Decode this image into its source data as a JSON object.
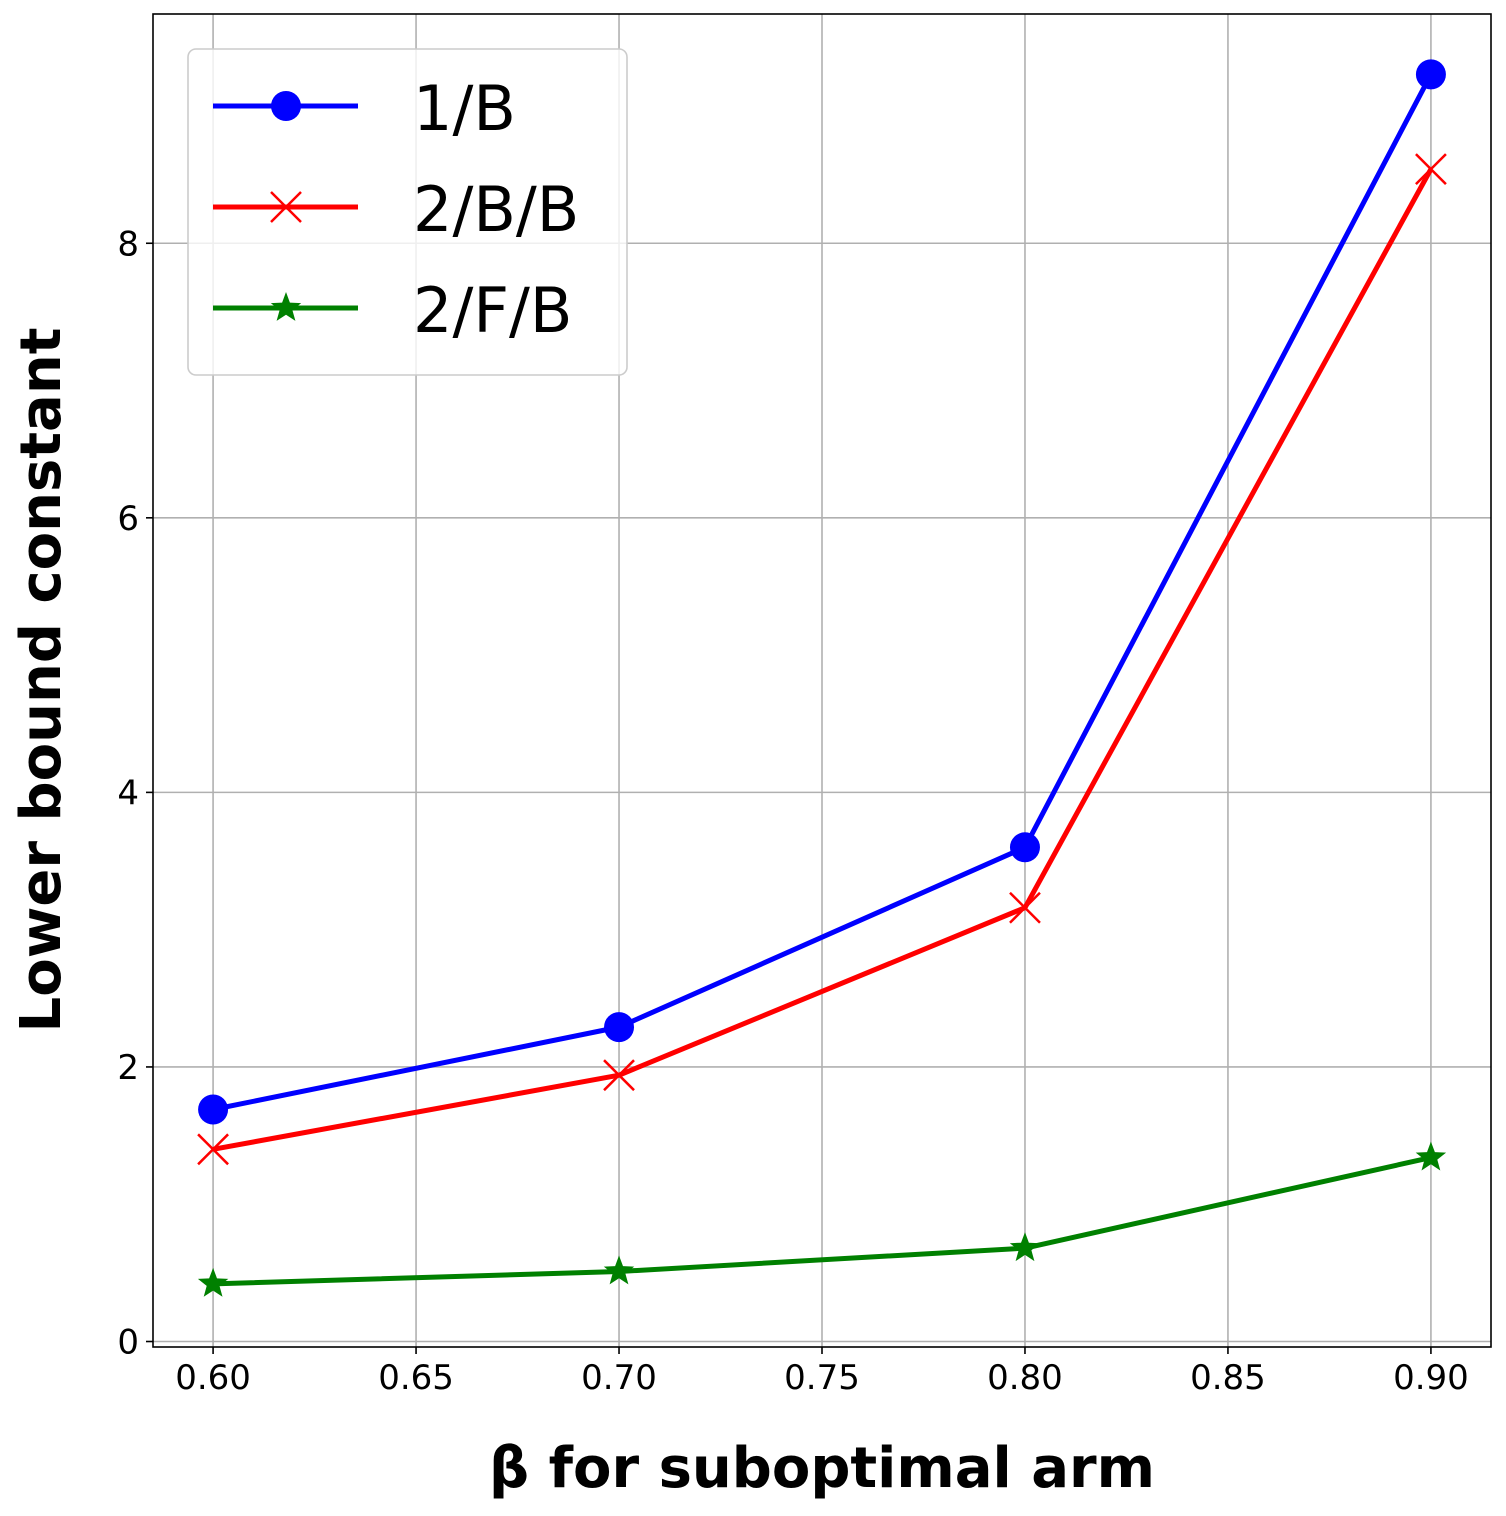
{
  "chart_data": {
    "type": "line",
    "title": "",
    "xlabel": "β for suboptimal arm",
    "ylabel": "Lower bound constant",
    "x": [
      0.6,
      0.7,
      0.8,
      0.9
    ],
    "xlim": [
      0.5852,
      0.9148
    ],
    "ylim": [
      -0.04,
      9.67
    ],
    "xticks": [
      "0.60",
      "0.65",
      "0.70",
      "0.75",
      "0.80",
      "0.85",
      "0.90"
    ],
    "xtick_values": [
      0.6,
      0.65,
      0.7,
      0.75,
      0.8,
      0.85,
      0.9
    ],
    "yticks": [
      "0",
      "2",
      "4",
      "6",
      "8"
    ],
    "ytick_values": [
      0,
      2,
      4,
      6,
      8
    ],
    "grid": true,
    "legend_position": "top-left",
    "series": [
      {
        "name": "1/B",
        "color": "#0000ff",
        "marker": "circle",
        "values": [
          1.69,
          2.29,
          3.6,
          9.23
        ]
      },
      {
        "name": "2/B/B",
        "color": "#ff0000",
        "marker": "x",
        "values": [
          1.4,
          1.94,
          3.16,
          8.54
        ]
      },
      {
        "name": "2/F/B",
        "color": "#008000",
        "marker": "star",
        "values": [
          0.42,
          0.51,
          0.68,
          1.34
        ]
      }
    ]
  }
}
